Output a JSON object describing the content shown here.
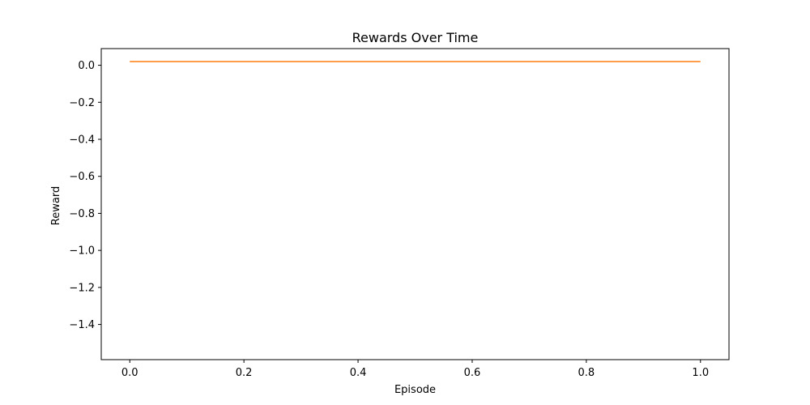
{
  "chart_data": {
    "type": "line",
    "title": "Rewards Over Time",
    "xlabel": "Episode",
    "ylabel": "Reward",
    "xlim": [
      -0.05,
      1.05
    ],
    "ylim": [
      -1.59,
      0.09
    ],
    "xticks": [
      0.0,
      0.2,
      0.4,
      0.6,
      0.8,
      1.0
    ],
    "xtick_labels": [
      "0.0",
      "0.2",
      "0.4",
      "0.6",
      "0.8",
      "1.0"
    ],
    "yticks": [
      0.0,
      -0.2,
      -0.4,
      -0.6,
      -0.8,
      -1.0,
      -1.2,
      -1.4
    ],
    "ytick_labels": [
      "0.0",
      "−0.2",
      "−0.4",
      "−0.6",
      "−0.8",
      "−1.0",
      "−1.2",
      "−1.4"
    ],
    "grid": false,
    "series": [
      {
        "color": "#ff7f0e",
        "x": [
          0.0,
          1.0
        ],
        "y": [
          0.02,
          0.02
        ]
      }
    ]
  }
}
